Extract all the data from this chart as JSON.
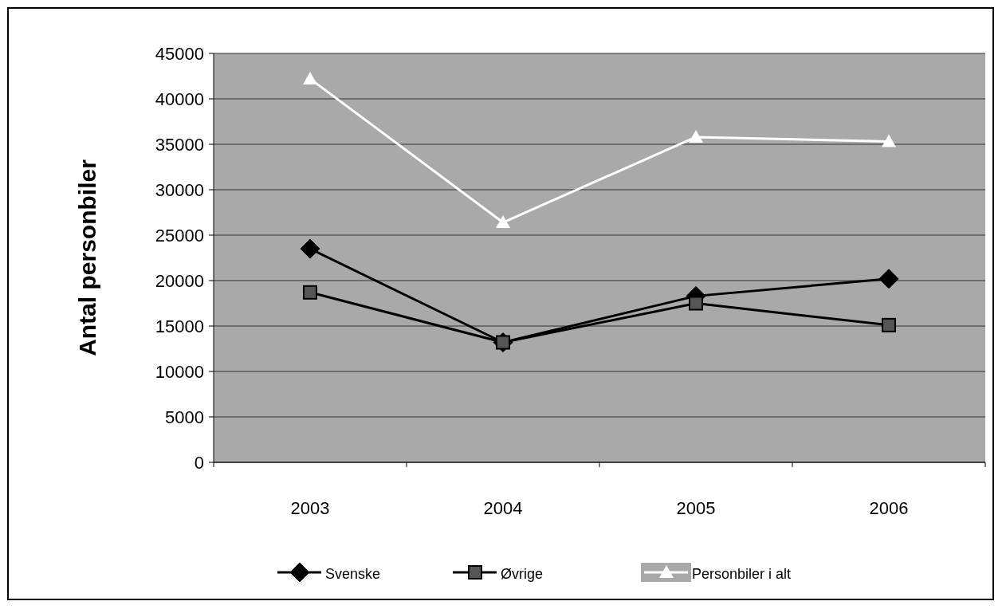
{
  "chart_data": {
    "type": "line",
    "ylabel": "Antal personbiler",
    "categories": [
      "2003",
      "2004",
      "2005",
      "2006"
    ],
    "series": [
      {
        "name": "Svenske",
        "color": "#000000",
        "marker": "diamond",
        "values": [
          23500,
          13200,
          18300,
          20200
        ]
      },
      {
        "name": "Øvrige",
        "color": "#000000",
        "marker": "square",
        "values": [
          18700,
          13200,
          17500,
          15100
        ]
      },
      {
        "name": "Personbiler i alt",
        "color": "#ffffff",
        "marker": "triangle",
        "values": [
          42200,
          26400,
          35800,
          35300
        ]
      }
    ],
    "ylim": [
      0,
      45000
    ],
    "yticks": [
      0,
      5000,
      10000,
      15000,
      20000,
      25000,
      30000,
      35000,
      40000,
      45000
    ],
    "grid": "y",
    "legend": "bottom"
  }
}
